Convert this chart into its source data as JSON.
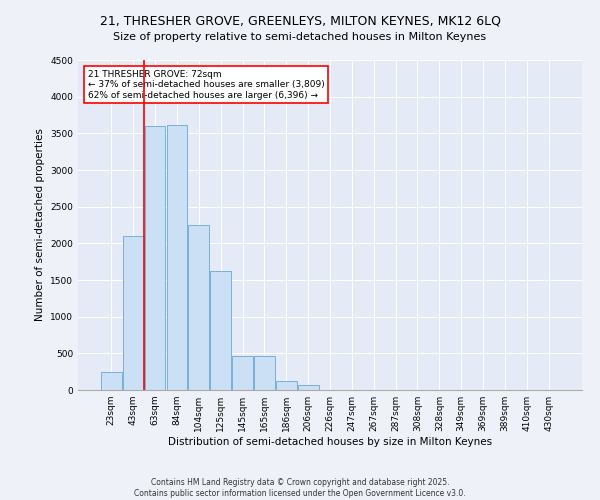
{
  "title": "21, THRESHER GROVE, GREENLEYS, MILTON KEYNES, MK12 6LQ",
  "subtitle": "Size of property relative to semi-detached houses in Milton Keynes",
  "xlabel": "Distribution of semi-detached houses by size in Milton Keynes",
  "ylabel": "Number of semi-detached properties",
  "categories": [
    "23sqm",
    "43sqm",
    "63sqm",
    "84sqm",
    "104sqm",
    "125sqm",
    "145sqm",
    "165sqm",
    "186sqm",
    "206sqm",
    "226sqm",
    "247sqm",
    "267sqm",
    "287sqm",
    "308sqm",
    "328sqm",
    "349sqm",
    "369sqm",
    "389sqm",
    "410sqm",
    "430sqm"
  ],
  "values": [
    250,
    2100,
    3600,
    3620,
    2250,
    1620,
    470,
    470,
    120,
    70,
    0,
    0,
    0,
    0,
    0,
    0,
    0,
    0,
    0,
    0,
    0
  ],
  "bar_color": "#cce0f5",
  "bar_edge_color": "#7bafd4",
  "property_sqm": 72,
  "pct_smaller": 37,
  "count_smaller": 3809,
  "pct_larger": 62,
  "count_larger": 6396,
  "annotation_text_line1": "21 THRESHER GROVE: 72sqm",
  "annotation_text_line2": "← 37% of semi-detached houses are smaller (3,809)",
  "annotation_text_line3": "62% of semi-detached houses are larger (6,396) →",
  "red_line_x": 1.5,
  "ylim": [
    0,
    4500
  ],
  "background_color": "#eef2f8",
  "plot_bg_color": "#e4eaf6",
  "grid_color": "#ffffff",
  "footnote1": "Contains HM Land Registry data © Crown copyright and database right 2025.",
  "footnote2": "Contains public sector information licensed under the Open Government Licence v3.0.",
  "title_fontsize": 9,
  "subtitle_fontsize": 8,
  "axis_label_fontsize": 7.5,
  "tick_fontsize": 6.5,
  "annotation_fontsize": 6.5,
  "footnote_fontsize": 5.5
}
